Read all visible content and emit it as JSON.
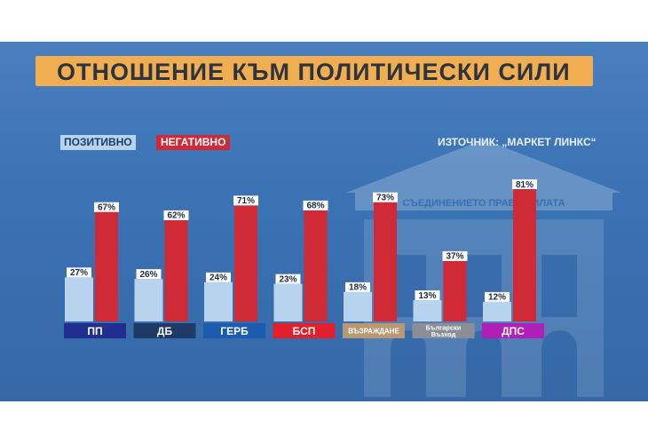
{
  "title": "ОТНОШЕНИЕ КЪМ ПОЛИТИЧЕСКИ СИЛИ",
  "source": "ИЗТОЧНИК: „МАРКЕТ ЛИНКС“",
  "building_sign": "СЪЕДИНЕНИЕТО ПРАВИ СИЛАТА",
  "colors": {
    "positive": "#b8d3ee",
    "negative": "#cf2a35",
    "title_bg": "#f0ae50",
    "value_label_bg": "#ffffff"
  },
  "chart_data": {
    "type": "bar",
    "title": "ОТНОШЕНИЕ КЪМ ПОЛИТИЧЕСКИ СИЛИ",
    "categories": [
      "ПП",
      "ДБ",
      "ГЕРБ",
      "БСП",
      "ВЪЗРАЖДАНЕ",
      "Български Възход",
      "ДПС"
    ],
    "category_colors": [
      "#1f2e8f",
      "#1e3a66",
      "#1b5cb0",
      "#e21f2a",
      "#b89870",
      "#8a8f96",
      "#b21fb8"
    ],
    "series": [
      {
        "name": "ПОЗИТИВНО",
        "values": [
          27,
          26,
          24,
          23,
          18,
          13,
          12
        ],
        "labels": [
          "27%",
          "26%",
          "24%",
          "23%",
          "18%",
          "13%",
          "12%"
        ]
      },
      {
        "name": "НЕГАТИВНО",
        "values": [
          67,
          62,
          71,
          68,
          73,
          37,
          81
        ],
        "labels": [
          "67%",
          "62%",
          "71%",
          "68%",
          "73%",
          "37%",
          "81%"
        ]
      }
    ],
    "ylim": [
      0,
      100
    ],
    "grid": false,
    "legend": "top-left"
  }
}
